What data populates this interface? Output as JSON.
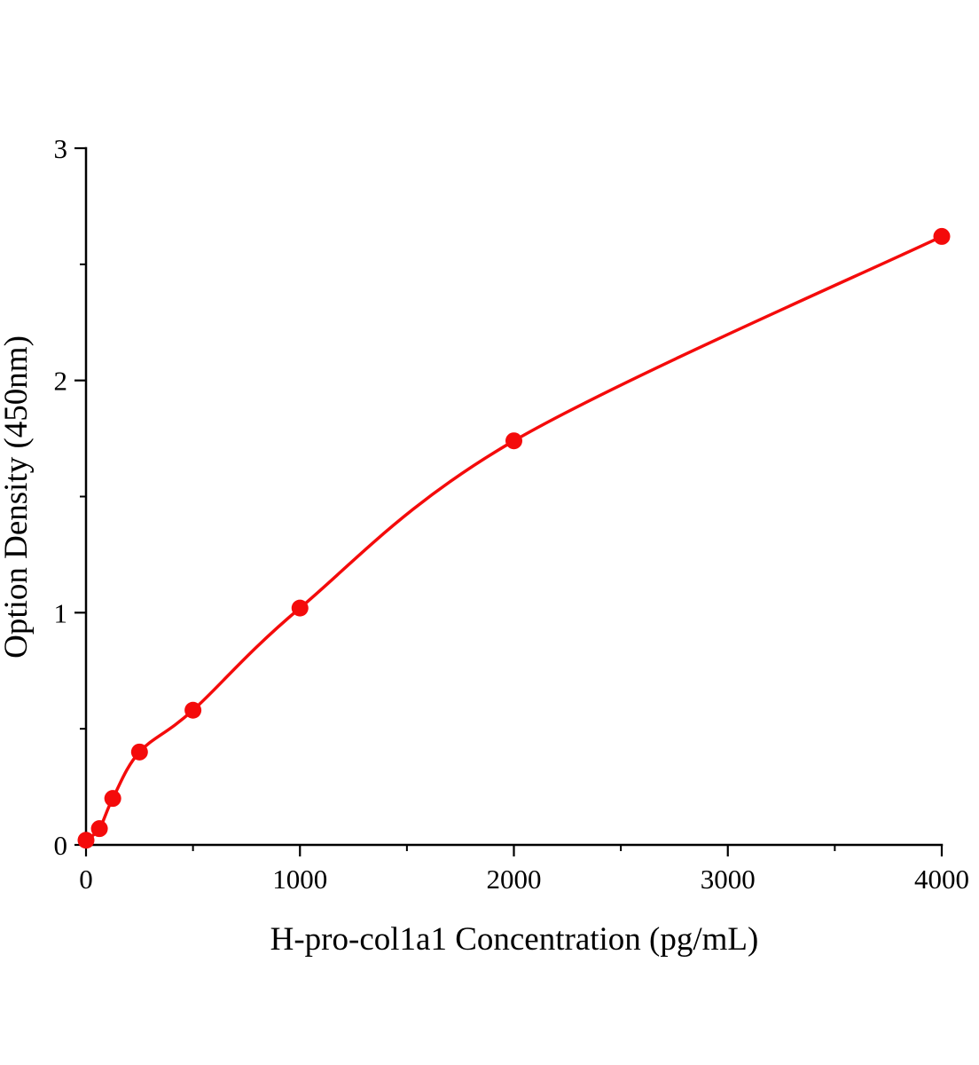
{
  "chart_data": {
    "type": "scatter",
    "title": "",
    "xlabel": "H-pro-col1a1 Concentration (pg/mL)",
    "ylabel": "Option Density (450nm)",
    "x": [
      0,
      62.5,
      125,
      250,
      500,
      1000,
      2000,
      4000
    ],
    "y": [
      0.02,
      0.07,
      0.2,
      0.4,
      0.58,
      1.02,
      1.74,
      2.62
    ],
    "xlim": [
      0,
      4000
    ],
    "ylim": [
      0,
      3
    ],
    "x_ticks": [
      0,
      1000,
      2000,
      3000,
      4000
    ],
    "x_minor_ticks": [
      500,
      1500,
      2500,
      3500
    ],
    "y_ticks": [
      0,
      1,
      2,
      3
    ],
    "y_minor_ticks": [
      0.5,
      1.5,
      2.5
    ],
    "grid": false,
    "legend": "none",
    "curve_style": "smooth",
    "line_color": "#f40b0b",
    "point_color": "#f40b0b",
    "axis_color": "#000000",
    "background": "#ffffff"
  }
}
